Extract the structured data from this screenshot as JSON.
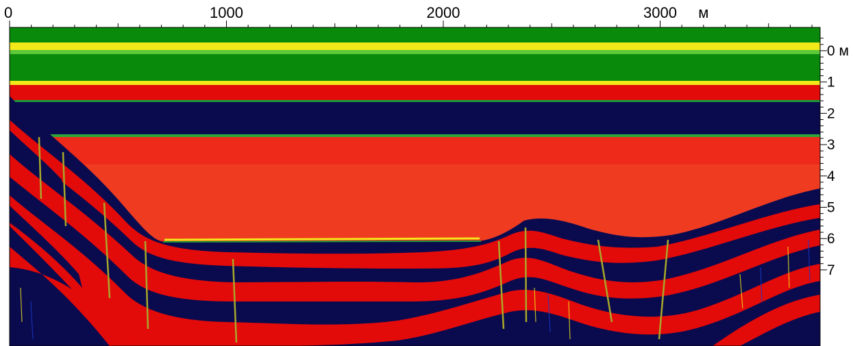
{
  "profile": {
    "top_axis": {
      "ticks": [
        {
          "value": 0,
          "label": "0"
        },
        {
          "value": 1000,
          "label": "1000"
        },
        {
          "value": 2000,
          "label": "2000"
        },
        {
          "value": 3000,
          "label": "3000"
        }
      ],
      "unit_label": "м",
      "range": [
        0,
        3700
      ]
    },
    "right_axis": {
      "ticks": [
        {
          "value": 0,
          "label": "0 м"
        },
        {
          "value": 1,
          "label": "1"
        },
        {
          "value": 2,
          "label": "2"
        },
        {
          "value": 3,
          "label": "3"
        },
        {
          "value": 4,
          "label": "4"
        },
        {
          "value": 5,
          "label": "5"
        },
        {
          "value": 6,
          "label": "6"
        },
        {
          "value": 7,
          "label": "7"
        }
      ],
      "range": [
        -0.4,
        7.1
      ]
    },
    "colors": {
      "green": "#0a8a0a",
      "yellow": "#f2e81a",
      "red": "#e30a0a",
      "navy": "#0a0a4e",
      "olive": "#a8a82a",
      "blue": "#1a3ac8"
    }
  }
}
